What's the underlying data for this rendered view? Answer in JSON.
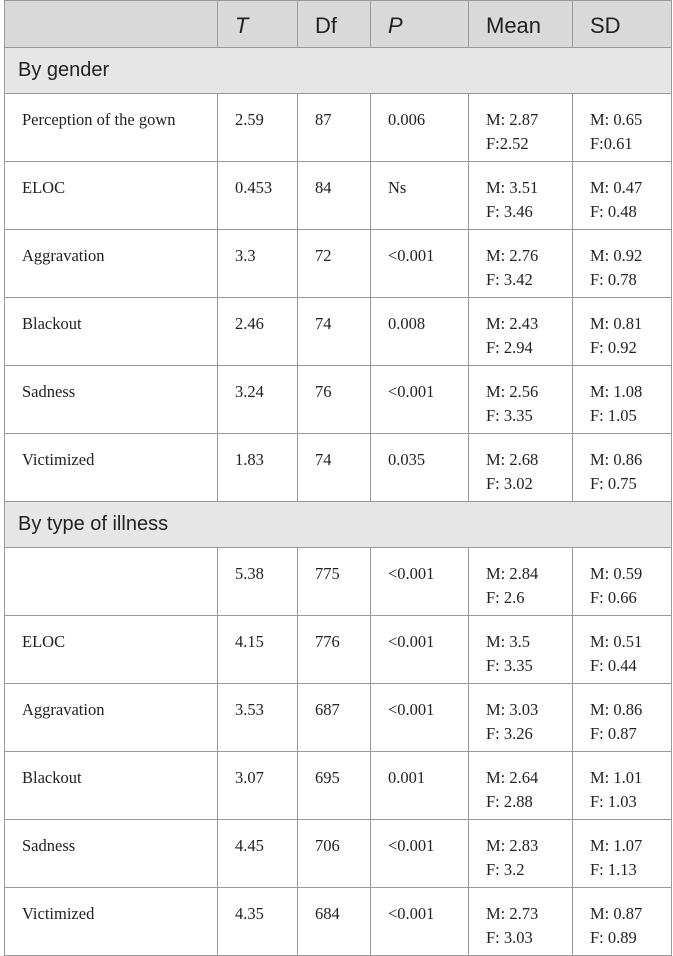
{
  "table": {
    "headers": [
      "",
      "T",
      "Df",
      "P",
      "Mean",
      "SD"
    ],
    "sections": [
      {
        "title": "By gender",
        "rows": [
          {
            "label": "Perception of the gown",
            "t": "2.59",
            "df": "87",
            "p": "0.006",
            "mean_m": "M: 2.87",
            "mean_f": "F:2.52",
            "sd_m": "M: 0.65",
            "sd_f": "F:0.61"
          },
          {
            "label": "ELOC",
            "t": "0.453",
            "df": "84",
            "p": "Ns",
            "mean_m": "M: 3.51",
            "mean_f": "F: 3.46",
            "sd_m": "M: 0.47",
            "sd_f": "F: 0.48"
          },
          {
            "label": "Aggravation",
            "t": "3.3",
            "df": "72",
            "p": "<0.001",
            "mean_m": "M: 2.76",
            "mean_f": "F: 3.42",
            "sd_m": "M: 0.92",
            "sd_f": "F: 0.78"
          },
          {
            "label": "Blackout",
            "t": "2.46",
            "df": "74",
            "p": "0.008",
            "mean_m": "M: 2.43",
            "mean_f": "F: 2.94",
            "sd_m": "M: 0.81",
            "sd_f": "F: 0.92"
          },
          {
            "label": "Sadness",
            "t": "3.24",
            "df": "76",
            "p": "<0.001",
            "mean_m": "M: 2.56",
            "mean_f": "F: 3.35",
            "sd_m": "M: 1.08",
            "sd_f": "F: 1.05"
          },
          {
            "label": "Victimized",
            "t": "1.83",
            "df": "74",
            "p": "0.035",
            "mean_m": "M: 2.68",
            "mean_f": "F: 3.02",
            "sd_m": "M: 0.86",
            "sd_f": "F: 0.75"
          }
        ]
      },
      {
        "title": "By type of illness",
        "rows": [
          {
            "label": "",
            "t": "5.38",
            "df": "775",
            "p": "<0.001",
            "mean_m": "M: 2.84",
            "mean_f": "F: 2.6",
            "sd_m": "M: 0.59",
            "sd_f": "F: 0.66"
          },
          {
            "label": "ELOC",
            "t": "4.15",
            "df": "776",
            "p": "<0.001",
            "mean_m": "M: 3.5",
            "mean_f": "F: 3.35",
            "sd_m": "M: 0.51",
            "sd_f": "F: 0.44"
          },
          {
            "label": "Aggravation",
            "t": "3.53",
            "df": "687",
            "p": "<0.001",
            "mean_m": "M: 3.03",
            "mean_f": "F: 3.26",
            "sd_m": "M: 0.86",
            "sd_f": "F: 0.87"
          },
          {
            "label": "Blackout",
            "t": "3.07",
            "df": "695",
            "p": "0.001",
            "mean_m": "M: 2.64",
            "mean_f": "F: 2.88",
            "sd_m": "M: 1.01",
            "sd_f": "F: 1.03"
          },
          {
            "label": "Sadness",
            "t": "4.45",
            "df": "706",
            "p": "<0.001",
            "mean_m": "M: 2.83",
            "mean_f": "F: 3.2",
            "sd_m": "M: 1.07",
            "sd_f": "F: 1.13"
          },
          {
            "label": "Victimized",
            "t": "4.35",
            "df": "684",
            "p": "<0.001",
            "mean_m": "M: 2.73",
            "mean_f": "F: 3.03",
            "sd_m": "M: 0.87",
            "sd_f": "F: 0.89"
          }
        ]
      }
    ]
  }
}
